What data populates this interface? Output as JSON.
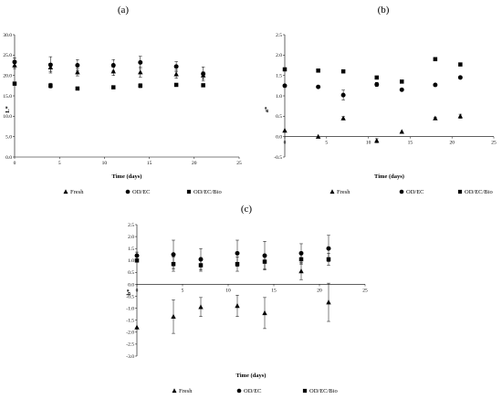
{
  "chart_data": [
    {
      "type": "scatter",
      "panel_label": "(a)",
      "xlabel": "Time (days)",
      "ylabel": "L*",
      "xlim": [
        0,
        25
      ],
      "ylim": [
        0,
        30
      ],
      "x_ticks": [
        "0",
        "5",
        "10",
        "15",
        "20",
        "25"
      ],
      "y_ticks": [
        "0.0",
        "5.0",
        "10.0",
        "15.0",
        "20.0",
        "25.0",
        "30.0"
      ],
      "legend_position": "bottom",
      "series": [
        {
          "name": "Fresh",
          "marker": "triangle",
          "x": [
            0,
            4,
            7,
            11,
            14,
            18,
            21
          ],
          "y": [
            22.5,
            22.0,
            20.8,
            21.0,
            20.8,
            20.3,
            20.0
          ],
          "err": [
            0.8,
            1.0,
            0.9,
            1.0,
            1.2,
            1.0,
            0.9
          ]
        },
        {
          "name": "OD/EC",
          "marker": "circle",
          "x": [
            0,
            4,
            7,
            11,
            14,
            18,
            21
          ],
          "y": [
            23.3,
            22.6,
            22.5,
            22.5,
            23.2,
            22.2,
            20.4
          ],
          "err": [
            1.0,
            2.0,
            1.4,
            1.4,
            1.5,
            1.2,
            1.7
          ]
        },
        {
          "name": "OD/EC/Bio",
          "marker": "square",
          "x": [
            0,
            4,
            7,
            11,
            14,
            18,
            21
          ],
          "y": [
            18.0,
            17.5,
            16.8,
            17.1,
            17.5,
            17.7,
            17.6
          ],
          "err": [
            0.4,
            0.6,
            0.4,
            0.3,
            0.5,
            0.3,
            0.3
          ]
        }
      ]
    },
    {
      "type": "scatter",
      "panel_label": "(b)",
      "xlabel": "Time (days)",
      "ylabel": "a*",
      "xlim": [
        0,
        25
      ],
      "ylim": [
        -0.5,
        2.5
      ],
      "x_ticks": [
        "0",
        "5",
        "10",
        "15",
        "20",
        "25"
      ],
      "y_ticks": [
        "-0.5",
        "0.0",
        "0.5",
        "1.0",
        "1.5",
        "2.0",
        "2.5"
      ],
      "legend_position": "bottom",
      "series": [
        {
          "name": "Fresh",
          "marker": "triangle",
          "x": [
            0,
            4,
            7,
            11,
            14,
            18,
            21
          ],
          "y": [
            0.15,
            0.0,
            0.45,
            -0.1,
            0.12,
            0.45,
            0.5
          ],
          "err": [
            0.0,
            0.0,
            0.04,
            0.05,
            0.0,
            0.03,
            0.05
          ]
        },
        {
          "name": "OD/EC",
          "marker": "circle",
          "x": [
            0,
            4,
            7,
            11,
            14,
            18,
            21
          ],
          "y": [
            1.25,
            1.22,
            1.02,
            1.28,
            1.15,
            1.27,
            1.45
          ],
          "err": [
            0.0,
            0.02,
            0.12,
            0.05,
            0.03,
            0.0,
            0.03
          ]
        },
        {
          "name": "OD/EC/Bio",
          "marker": "square",
          "x": [
            0,
            4,
            7,
            11,
            14,
            18,
            21
          ],
          "y": [
            1.65,
            1.62,
            1.6,
            1.45,
            1.35,
            1.9,
            1.77
          ],
          "err": [
            0.0,
            0.0,
            0.03,
            0.0,
            0.0,
            0.0,
            0.0
          ]
        }
      ]
    },
    {
      "type": "scatter",
      "panel_label": "(c)",
      "xlabel": "Time (days)",
      "ylabel": "b*",
      "xlim": [
        0,
        25
      ],
      "ylim": [
        -3,
        2.5
      ],
      "x_ticks": [
        "0",
        "5",
        "10",
        "15",
        "20",
        "25"
      ],
      "y_ticks": [
        "-3.0",
        "-2.5",
        "-2.0",
        "-1.5",
        "-1.0",
        "-0.5",
        "0.0",
        "0.5",
        "1.0",
        "1.5",
        "2.0",
        "2.5"
      ],
      "legend_position": "bottom",
      "series": [
        {
          "name": "Fresh",
          "marker": "triangle",
          "x": [
            0,
            4,
            7,
            11,
            14,
            18,
            21
          ],
          "y": [
            -1.8,
            -1.35,
            -0.95,
            -0.9,
            -1.2,
            0.55,
            -0.75
          ],
          "err": [
            0.0,
            0.7,
            0.4,
            0.45,
            0.65,
            0.35,
            0.8
          ]
        },
        {
          "name": "OD/EC",
          "marker": "circle",
          "x": [
            0,
            4,
            7,
            11,
            14,
            18,
            21
          ],
          "y": [
            1.2,
            1.25,
            1.05,
            1.3,
            1.2,
            1.3,
            1.5
          ],
          "err": [
            0.15,
            0.6,
            0.45,
            0.55,
            0.6,
            0.4,
            0.55
          ]
        },
        {
          "name": "OD/EC/Bio",
          "marker": "square",
          "x": [
            0,
            4,
            7,
            11,
            14,
            18,
            21
          ],
          "y": [
            1.0,
            0.85,
            0.8,
            0.85,
            0.95,
            1.05,
            1.05
          ],
          "err": [
            0.0,
            0.3,
            0.25,
            0.3,
            0.3,
            0.2,
            0.25
          ]
        }
      ]
    }
  ]
}
